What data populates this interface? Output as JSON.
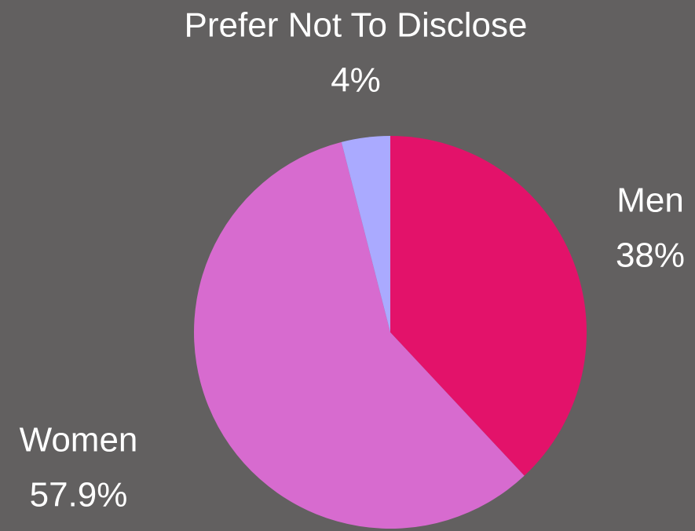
{
  "chart_data": {
    "type": "pie",
    "categories": [
      "Men",
      "Women",
      "Prefer Not To Disclose"
    ],
    "values": [
      38,
      57.9,
      4
    ],
    "value_labels": [
      "38%",
      "57.9%",
      "4%"
    ],
    "colors": [
      "#e3126a",
      "#d76bcf",
      "#aaaaff"
    ]
  }
}
